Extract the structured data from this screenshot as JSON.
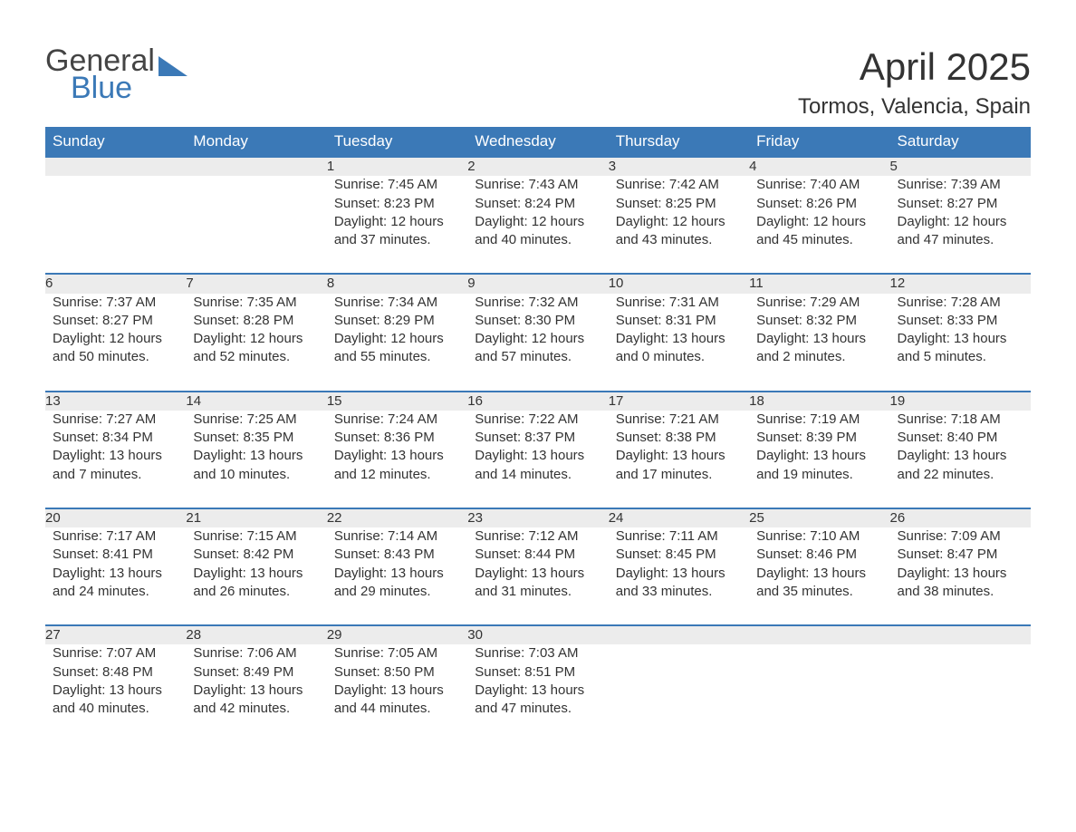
{
  "logo": {
    "word1": "General",
    "word2": "Blue",
    "triangle_color": "#3b79b7",
    "text_gray": "#444444"
  },
  "title": "April 2025",
  "location": "Tormos, Valencia, Spain",
  "colors": {
    "header_bg": "#3b79b7",
    "header_text": "#ffffff",
    "daynum_bg": "#ececec",
    "daynum_text": "#555555",
    "body_text": "#333333",
    "row_divider": "#3b79b7"
  },
  "fonts": {
    "title_size_pt": 32,
    "location_size_pt": 18,
    "header_size_pt": 13,
    "daynum_size_pt": 13,
    "cell_size_pt": 11
  },
  "weekday_headers": [
    "Sunday",
    "Monday",
    "Tuesday",
    "Wednesday",
    "Thursday",
    "Friday",
    "Saturday"
  ],
  "weeks": [
    [
      null,
      null,
      {
        "n": "1",
        "sunrise": "Sunrise: 7:45 AM",
        "sunset": "Sunset: 8:23 PM",
        "day1": "Daylight: 12 hours",
        "day2": "and 37 minutes."
      },
      {
        "n": "2",
        "sunrise": "Sunrise: 7:43 AM",
        "sunset": "Sunset: 8:24 PM",
        "day1": "Daylight: 12 hours",
        "day2": "and 40 minutes."
      },
      {
        "n": "3",
        "sunrise": "Sunrise: 7:42 AM",
        "sunset": "Sunset: 8:25 PM",
        "day1": "Daylight: 12 hours",
        "day2": "and 43 minutes."
      },
      {
        "n": "4",
        "sunrise": "Sunrise: 7:40 AM",
        "sunset": "Sunset: 8:26 PM",
        "day1": "Daylight: 12 hours",
        "day2": "and 45 minutes."
      },
      {
        "n": "5",
        "sunrise": "Sunrise: 7:39 AM",
        "sunset": "Sunset: 8:27 PM",
        "day1": "Daylight: 12 hours",
        "day2": "and 47 minutes."
      }
    ],
    [
      {
        "n": "6",
        "sunrise": "Sunrise: 7:37 AM",
        "sunset": "Sunset: 8:27 PM",
        "day1": "Daylight: 12 hours",
        "day2": "and 50 minutes."
      },
      {
        "n": "7",
        "sunrise": "Sunrise: 7:35 AM",
        "sunset": "Sunset: 8:28 PM",
        "day1": "Daylight: 12 hours",
        "day2": "and 52 minutes."
      },
      {
        "n": "8",
        "sunrise": "Sunrise: 7:34 AM",
        "sunset": "Sunset: 8:29 PM",
        "day1": "Daylight: 12 hours",
        "day2": "and 55 minutes."
      },
      {
        "n": "9",
        "sunrise": "Sunrise: 7:32 AM",
        "sunset": "Sunset: 8:30 PM",
        "day1": "Daylight: 12 hours",
        "day2": "and 57 minutes."
      },
      {
        "n": "10",
        "sunrise": "Sunrise: 7:31 AM",
        "sunset": "Sunset: 8:31 PM",
        "day1": "Daylight: 13 hours",
        "day2": "and 0 minutes."
      },
      {
        "n": "11",
        "sunrise": "Sunrise: 7:29 AM",
        "sunset": "Sunset: 8:32 PM",
        "day1": "Daylight: 13 hours",
        "day2": "and 2 minutes."
      },
      {
        "n": "12",
        "sunrise": "Sunrise: 7:28 AM",
        "sunset": "Sunset: 8:33 PM",
        "day1": "Daylight: 13 hours",
        "day2": "and 5 minutes."
      }
    ],
    [
      {
        "n": "13",
        "sunrise": "Sunrise: 7:27 AM",
        "sunset": "Sunset: 8:34 PM",
        "day1": "Daylight: 13 hours",
        "day2": "and 7 minutes."
      },
      {
        "n": "14",
        "sunrise": "Sunrise: 7:25 AM",
        "sunset": "Sunset: 8:35 PM",
        "day1": "Daylight: 13 hours",
        "day2": "and 10 minutes."
      },
      {
        "n": "15",
        "sunrise": "Sunrise: 7:24 AM",
        "sunset": "Sunset: 8:36 PM",
        "day1": "Daylight: 13 hours",
        "day2": "and 12 minutes."
      },
      {
        "n": "16",
        "sunrise": "Sunrise: 7:22 AM",
        "sunset": "Sunset: 8:37 PM",
        "day1": "Daylight: 13 hours",
        "day2": "and 14 minutes."
      },
      {
        "n": "17",
        "sunrise": "Sunrise: 7:21 AM",
        "sunset": "Sunset: 8:38 PM",
        "day1": "Daylight: 13 hours",
        "day2": "and 17 minutes."
      },
      {
        "n": "18",
        "sunrise": "Sunrise: 7:19 AM",
        "sunset": "Sunset: 8:39 PM",
        "day1": "Daylight: 13 hours",
        "day2": "and 19 minutes."
      },
      {
        "n": "19",
        "sunrise": "Sunrise: 7:18 AM",
        "sunset": "Sunset: 8:40 PM",
        "day1": "Daylight: 13 hours",
        "day2": "and 22 minutes."
      }
    ],
    [
      {
        "n": "20",
        "sunrise": "Sunrise: 7:17 AM",
        "sunset": "Sunset: 8:41 PM",
        "day1": "Daylight: 13 hours",
        "day2": "and 24 minutes."
      },
      {
        "n": "21",
        "sunrise": "Sunrise: 7:15 AM",
        "sunset": "Sunset: 8:42 PM",
        "day1": "Daylight: 13 hours",
        "day2": "and 26 minutes."
      },
      {
        "n": "22",
        "sunrise": "Sunrise: 7:14 AM",
        "sunset": "Sunset: 8:43 PM",
        "day1": "Daylight: 13 hours",
        "day2": "and 29 minutes."
      },
      {
        "n": "23",
        "sunrise": "Sunrise: 7:12 AM",
        "sunset": "Sunset: 8:44 PM",
        "day1": "Daylight: 13 hours",
        "day2": "and 31 minutes."
      },
      {
        "n": "24",
        "sunrise": "Sunrise: 7:11 AM",
        "sunset": "Sunset: 8:45 PM",
        "day1": "Daylight: 13 hours",
        "day2": "and 33 minutes."
      },
      {
        "n": "25",
        "sunrise": "Sunrise: 7:10 AM",
        "sunset": "Sunset: 8:46 PM",
        "day1": "Daylight: 13 hours",
        "day2": "and 35 minutes."
      },
      {
        "n": "26",
        "sunrise": "Sunrise: 7:09 AM",
        "sunset": "Sunset: 8:47 PM",
        "day1": "Daylight: 13 hours",
        "day2": "and 38 minutes."
      }
    ],
    [
      {
        "n": "27",
        "sunrise": "Sunrise: 7:07 AM",
        "sunset": "Sunset: 8:48 PM",
        "day1": "Daylight: 13 hours",
        "day2": "and 40 minutes."
      },
      {
        "n": "28",
        "sunrise": "Sunrise: 7:06 AM",
        "sunset": "Sunset: 8:49 PM",
        "day1": "Daylight: 13 hours",
        "day2": "and 42 minutes."
      },
      {
        "n": "29",
        "sunrise": "Sunrise: 7:05 AM",
        "sunset": "Sunset: 8:50 PM",
        "day1": "Daylight: 13 hours",
        "day2": "and 44 minutes."
      },
      {
        "n": "30",
        "sunrise": "Sunrise: 7:03 AM",
        "sunset": "Sunset: 8:51 PM",
        "day1": "Daylight: 13 hours",
        "day2": "and 47 minutes."
      },
      null,
      null,
      null
    ]
  ]
}
